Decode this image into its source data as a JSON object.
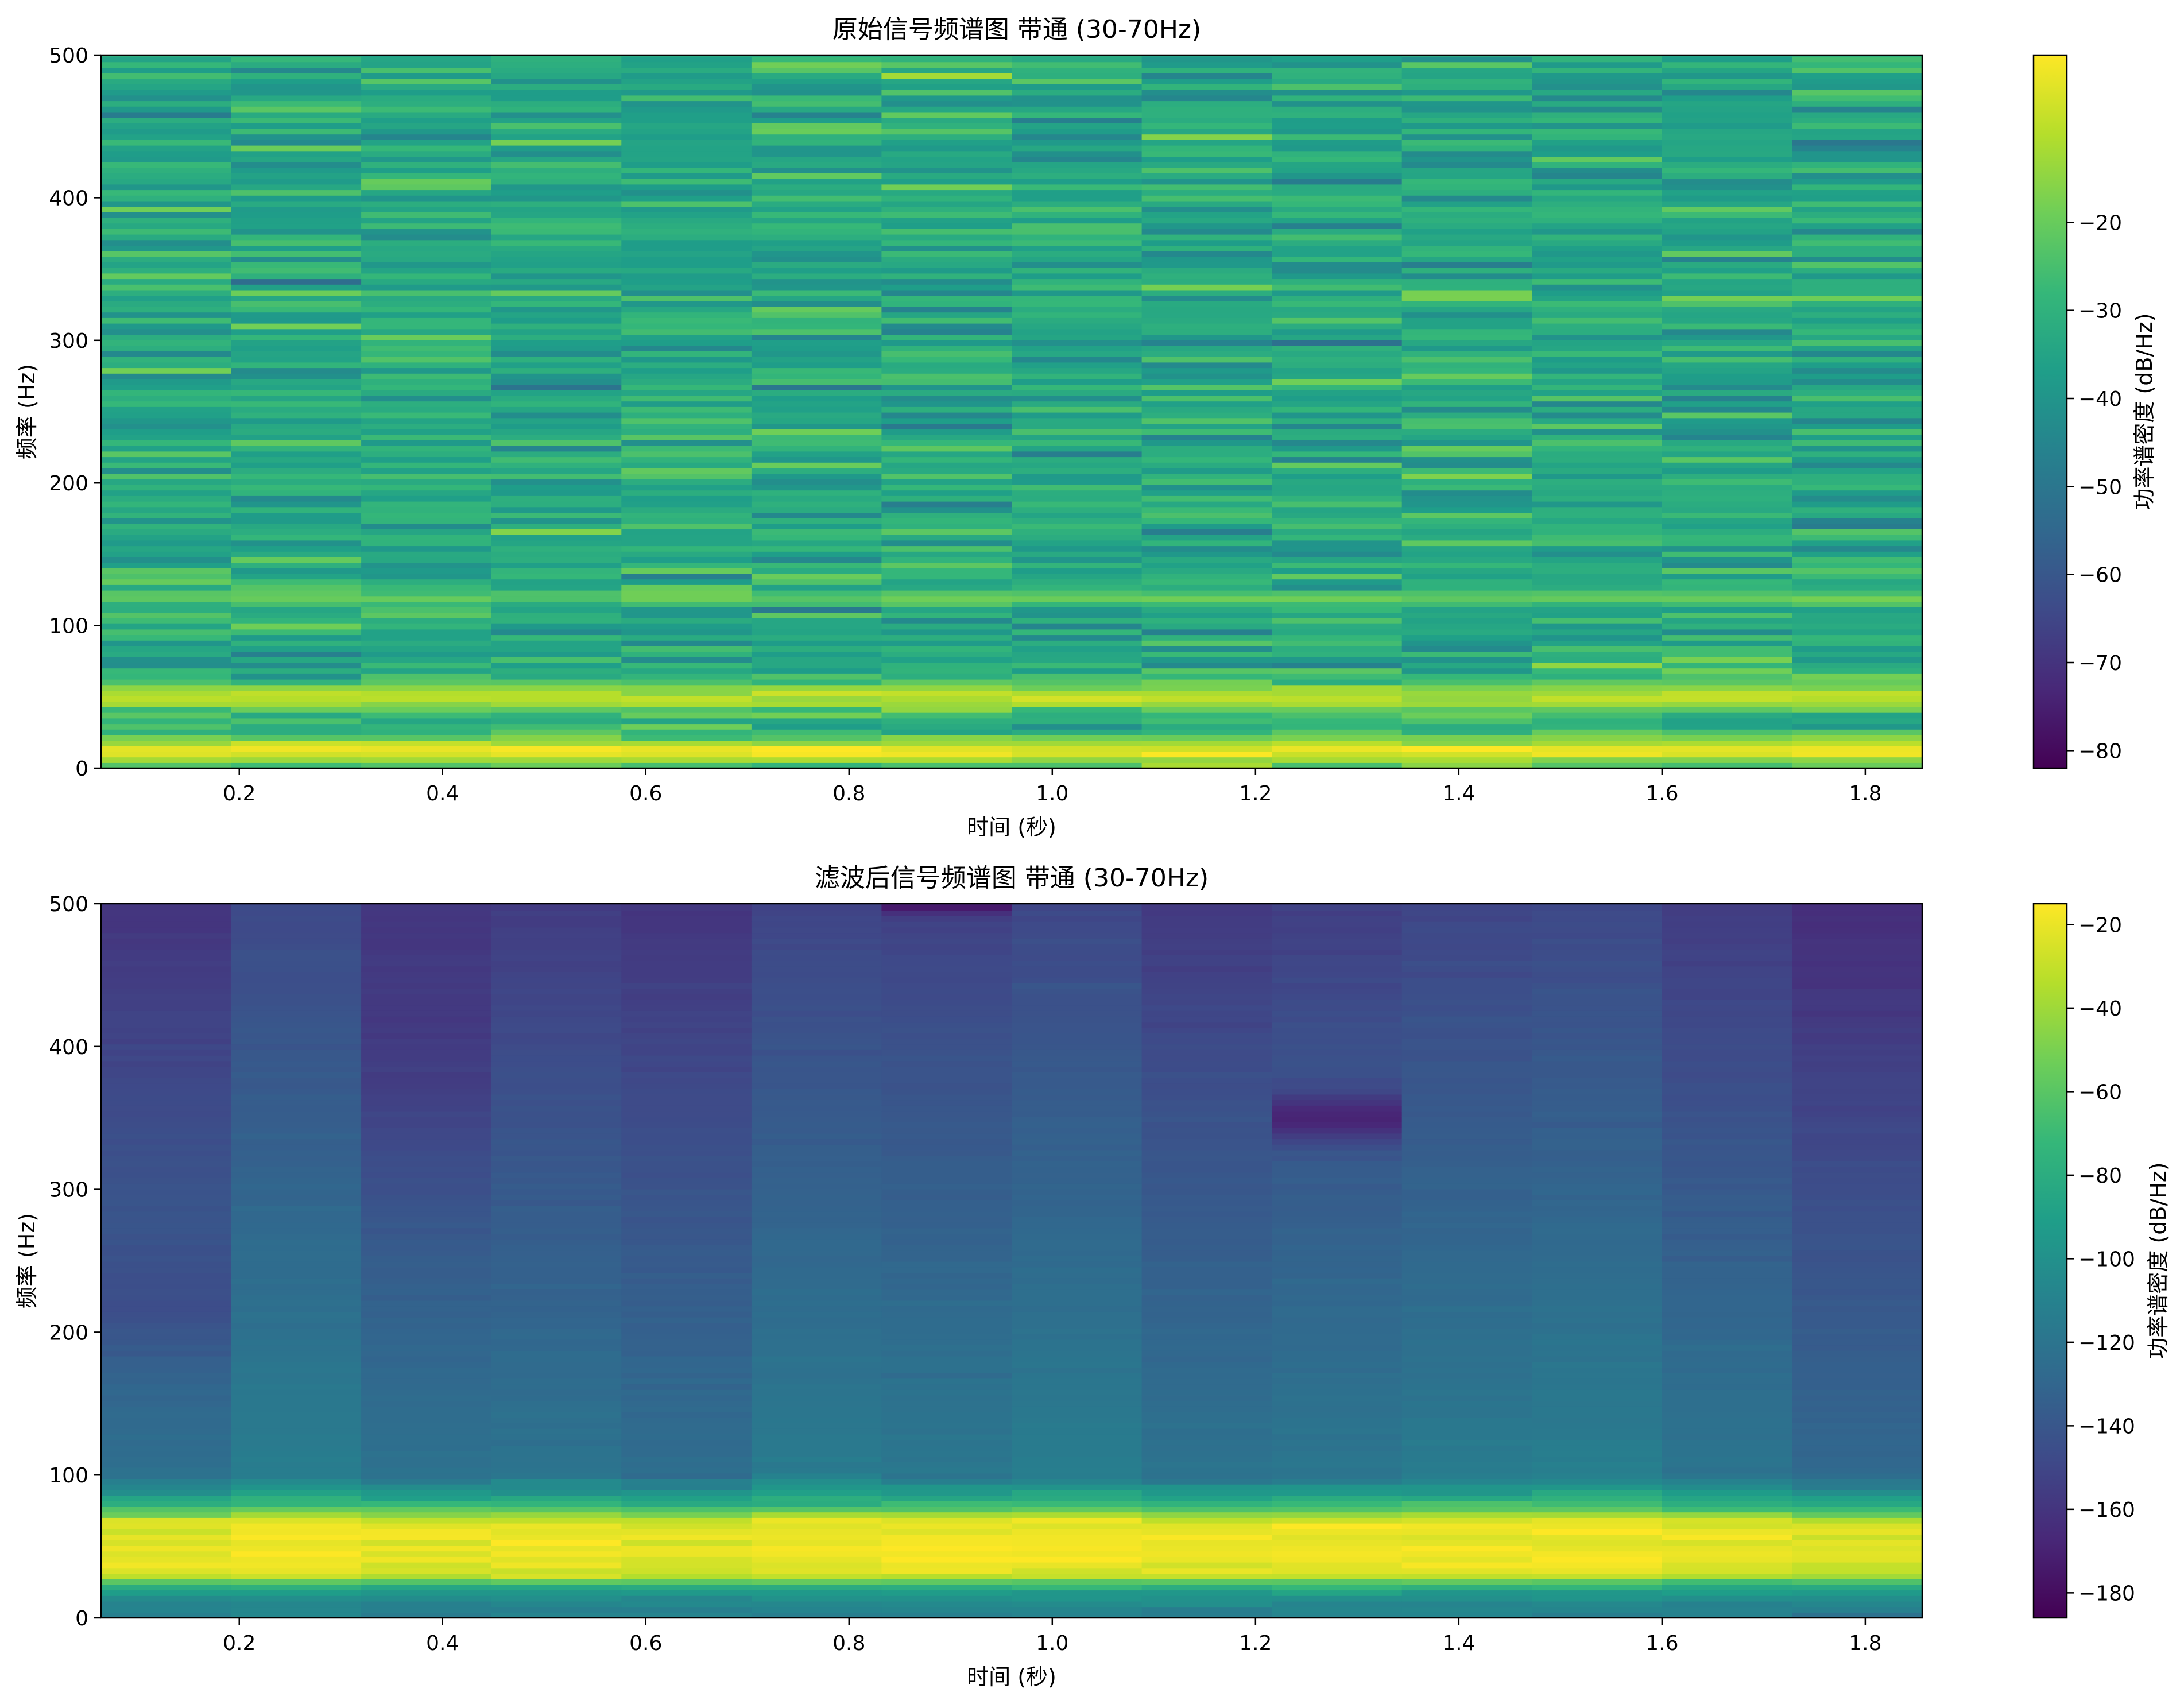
{
  "chart_data": [
    {
      "type": "heatmap",
      "title": "原始信号频谱图 带通 (30-70Hz)",
      "xlabel": "时间 (秒)",
      "ylabel": "频率 (Hz)",
      "colorbar_label": "功率谱密度 (dB/Hz)",
      "colormap": "viridis",
      "xlim": [
        0.064,
        1.856
      ],
      "ylim": [
        0,
        500
      ],
      "clim": [
        -82,
        -1
      ],
      "x_ticks": [
        0.2,
        0.4,
        0.6,
        0.8,
        1.0,
        1.2,
        1.4,
        1.6,
        1.8
      ],
      "x_tick_labels": [
        "0.2",
        "0.4",
        "0.6",
        "0.8",
        "1.0",
        "1.2",
        "1.4",
        "1.6",
        "1.8"
      ],
      "y_ticks": [
        0,
        100,
        200,
        300,
        400,
        500
      ],
      "y_tick_labels": [
        "0",
        "100",
        "200",
        "300",
        "400",
        "500"
      ],
      "colorbar_ticks": [
        -20,
        -30,
        -40,
        -50,
        -60,
        -70,
        -80
      ],
      "colorbar_tick_labels": [
        "−20",
        "−30",
        "−40",
        "−50",
        "−60",
        "−70",
        "−80"
      ],
      "time_bins": [
        0.128,
        0.256,
        0.384,
        0.512,
        0.64,
        0.768,
        0.896,
        1.024,
        1.152,
        1.28,
        1.408,
        1.536,
        1.664,
        1.792
      ],
      "freq_resolution_hz": 3.9,
      "profile": {
        "kind": "noise",
        "base_db": -33,
        "noise_sd_db": 6,
        "features": [
          {
            "freq_hz": 12,
            "width_hz": 7,
            "peak_db": -3
          },
          {
            "freq_hz": 50,
            "width_hz": 8,
            "peak_db": -9
          },
          {
            "freq_hz": 120,
            "width_hz": 4,
            "peak_db": -20
          }
        ]
      }
    },
    {
      "type": "heatmap",
      "title": "滤波后信号频谱图 带通 (30-70Hz)",
      "xlabel": "时间 (秒)",
      "ylabel": "频率 (Hz)",
      "colorbar_label": "功率谱密度 (dB/Hz)",
      "colormap": "viridis",
      "xlim": [
        0.064,
        1.856
      ],
      "ylim": [
        0,
        500
      ],
      "clim": [
        -186,
        -15
      ],
      "x_ticks": [
        0.2,
        0.4,
        0.6,
        0.8,
        1.0,
        1.2,
        1.4,
        1.6,
        1.8
      ],
      "x_tick_labels": [
        "0.2",
        "0.4",
        "0.6",
        "0.8",
        "1.0",
        "1.2",
        "1.4",
        "1.6",
        "1.8"
      ],
      "y_ticks": [
        0,
        100,
        200,
        300,
        400,
        500
      ],
      "y_tick_labels": [
        "0",
        "100",
        "200",
        "300",
        "400",
        "500"
      ],
      "colorbar_ticks": [
        -20,
        -40,
        -60,
        -80,
        -100,
        -120,
        -140,
        -160,
        -180
      ],
      "colorbar_tick_labels": [
        "−20",
        "−40",
        "−60",
        "−80",
        "−100",
        "−120",
        "−140",
        "−160",
        "−180"
      ],
      "time_bins": [
        0.128,
        0.256,
        0.384,
        0.512,
        0.64,
        0.768,
        0.896,
        1.024,
        1.152,
        1.28,
        1.408,
        1.536,
        1.664,
        1.792
      ],
      "freq_resolution_hz": 3.9,
      "profile": {
        "kind": "bandpass",
        "passband_hz": [
          30,
          70
        ],
        "passband_db": -25,
        "dc_db": -110,
        "stopband_db_at_100hz": -118,
        "stopband_slope_db_per_100hz": -9,
        "column_offsets_db": [
          -6,
          5,
          -4,
          -2,
          -6,
          3,
          1,
          5,
          -3,
          0,
          3,
          5,
          -2,
          -10
        ],
        "dips": [
          {
            "time_index": 0,
            "freq_hz": 220,
            "width_hz": 30,
            "depth_db": -10
          },
          {
            "time_index": 2,
            "freq_hz": 380,
            "width_hz": 60,
            "depth_db": -8
          },
          {
            "time_index": 9,
            "freq_hz": 350,
            "width_hz": 12,
            "depth_db": -28
          },
          {
            "time_index": 6,
            "freq_hz": 498,
            "width_hz": 4,
            "depth_db": -20
          }
        ]
      }
    }
  ]
}
